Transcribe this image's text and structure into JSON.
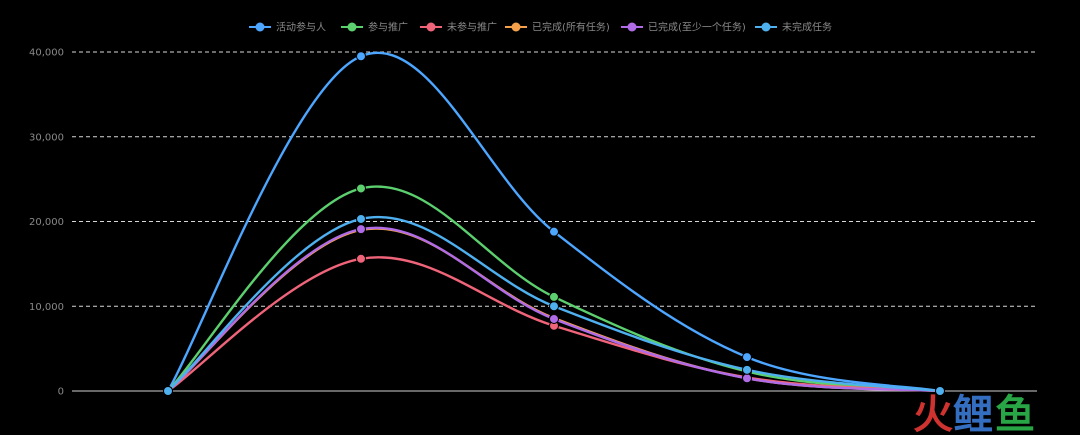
{
  "chart_data": {
    "type": "line",
    "title": "",
    "xlabel": "",
    "ylabel": "",
    "categories": [
      "",
      "",
      "",
      "",
      ""
    ],
    "ylim": [
      0,
      40000
    ],
    "y_ticks": [
      0,
      10000,
      20000,
      30000,
      40000
    ],
    "y_tick_labels": [
      "0",
      "10,000",
      "20,000",
      "30,000",
      "40,000"
    ],
    "grid": "horizontal-dashed",
    "legend_position": "top-center",
    "series": [
      {
        "name": "活动参与人",
        "color": "#4da6ff",
        "values": [
          0,
          39500,
          18800,
          4000,
          0
        ]
      },
      {
        "name": "参与推广",
        "color": "#5ccf6e",
        "values": [
          0,
          23900,
          11100,
          2300,
          0
        ]
      },
      {
        "name": "未参与推广",
        "color": "#f0647a",
        "values": [
          0,
          15600,
          7700,
          1600,
          0
        ]
      },
      {
        "name": "已完成(所有任务)",
        "color": "#f5a04a",
        "values": [
          0,
          19000,
          8600,
          1500,
          0
        ]
      },
      {
        "name": "已完成(至少一个任务)",
        "color": "#b06be6",
        "values": [
          0,
          19100,
          8500,
          1500,
          0
        ]
      },
      {
        "name": "未完成任务",
        "color": "#4fb0f0",
        "values": [
          0,
          20300,
          10000,
          2500,
          0
        ]
      }
    ]
  },
  "watermark": {
    "text": "火鲤鱼",
    "colors": [
      "#e53935",
      "#3a7bd5",
      "#2db84d"
    ]
  }
}
